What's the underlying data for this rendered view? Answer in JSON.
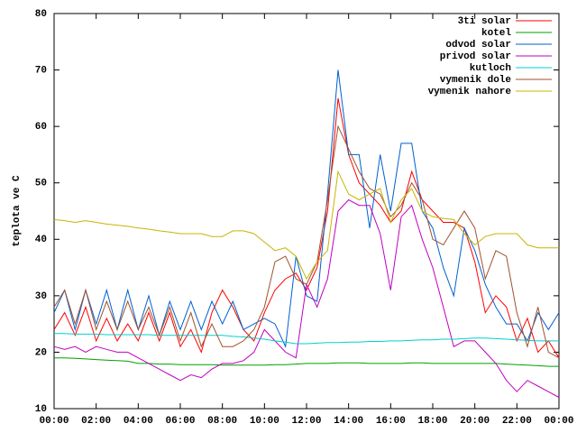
{
  "chart_data": {
    "type": "line",
    "ylabel": "teplota ve C",
    "xlim": [
      0,
      24
    ],
    "xticks": [
      {
        "value": 0,
        "label": "00:00"
      },
      {
        "value": 2,
        "label": "02:00"
      },
      {
        "value": 4,
        "label": "04:00"
      },
      {
        "value": 6,
        "label": "06:00"
      },
      {
        "value": 8,
        "label": "08:00"
      },
      {
        "value": 10,
        "label": "10:00"
      },
      {
        "value": 12,
        "label": "12:00"
      },
      {
        "value": 14,
        "label": "14:00"
      },
      {
        "value": 16,
        "label": "16:00"
      },
      {
        "value": 18,
        "label": "18:00"
      },
      {
        "value": 20,
        "label": "20:00"
      },
      {
        "value": 22,
        "label": "22:00"
      },
      {
        "value": 24,
        "label": "00:00"
      }
    ],
    "ylim": [
      10,
      80
    ],
    "yticks": [
      10,
      20,
      30,
      40,
      50,
      60,
      70,
      80
    ],
    "legend": "top-right",
    "x": [
      0,
      0.5,
      1,
      1.5,
      2,
      2.5,
      3,
      3.5,
      4,
      4.5,
      5,
      5.5,
      6,
      6.5,
      7,
      7.5,
      8,
      8.5,
      9,
      9.5,
      10,
      10.5,
      11,
      11.5,
      12,
      12.5,
      13,
      13.5,
      14,
      14.5,
      15,
      15.5,
      16,
      16.5,
      17,
      17.5,
      18,
      18.5,
      19,
      19.5,
      20,
      20.5,
      21,
      21.5,
      22,
      22.5,
      23,
      23.5,
      24
    ],
    "series": [
      {
        "name": "3ti solar",
        "color": "#ff0000",
        "values": [
          24,
          27,
          23,
          28,
          22,
          26,
          22,
          25,
          22,
          27,
          22,
          27,
          21,
          24,
          20,
          27,
          31,
          28,
          24,
          22,
          27,
          31,
          33,
          34,
          31,
          35,
          45,
          65,
          55,
          50,
          48,
          46,
          43,
          45,
          52,
          47,
          45,
          43,
          43,
          42,
          36,
          27,
          30,
          28,
          22,
          26,
          20,
          22,
          19
        ]
      },
      {
        "name": "kotel",
        "color": "#00a000",
        "values": [
          19,
          19,
          18.9,
          18.8,
          18.7,
          18.6,
          18.5,
          18.4,
          18,
          18,
          17.9,
          17.9,
          17.8,
          17.8,
          17.8,
          17.8,
          17.7,
          17.7,
          17.7,
          17.7,
          17.7,
          17.8,
          17.8,
          17.9,
          18,
          18,
          18,
          18.1,
          18.1,
          18.1,
          18,
          18,
          18,
          18,
          18.1,
          18.1,
          18,
          18,
          18,
          18,
          18,
          18,
          18,
          17.9,
          17.8,
          17.7,
          17.6,
          17.5,
          17.5
        ]
      },
      {
        "name": "odvod solar",
        "color": "#0060d0",
        "values": [
          27,
          31,
          24,
          31,
          25,
          31,
          24,
          31,
          24,
          30,
          23,
          29,
          24,
          29,
          24,
          29,
          25,
          29,
          24,
          25,
          26,
          25,
          21,
          37,
          30,
          29,
          48,
          70,
          55,
          55,
          42,
          55,
          45,
          57,
          57,
          45,
          42,
          35,
          30,
          42,
          38,
          32,
          28,
          25,
          25,
          22,
          27,
          24,
          27
        ]
      },
      {
        "name": "privod solar",
        "color": "#c000c0",
        "values": [
          21,
          20.5,
          21,
          20,
          21,
          20.5,
          20,
          20,
          19,
          18,
          17,
          16,
          15,
          16,
          15.5,
          17,
          18,
          18,
          18.5,
          20,
          24,
          22,
          20,
          19,
          32,
          28,
          33,
          45,
          47,
          46,
          46,
          41,
          31,
          44,
          46,
          40,
          35,
          28,
          21,
          22,
          22,
          20,
          18,
          15,
          13,
          15,
          14,
          13,
          12
        ]
      },
      {
        "name": "kutloch",
        "color": "#00d0d0",
        "values": [
          23.3,
          23.3,
          23.2,
          23.2,
          23.2,
          23.1,
          23.1,
          23.1,
          23.1,
          23.1,
          23,
          23,
          23,
          23,
          23,
          23,
          23,
          22.8,
          22.7,
          22.5,
          22.3,
          22,
          21.8,
          21.5,
          21.5,
          21.6,
          21.7,
          21.7,
          21.8,
          21.8,
          21.9,
          21.9,
          22,
          22,
          22.1,
          22.2,
          22.2,
          22.3,
          22.3,
          22.4,
          22.5,
          22.5,
          22.4,
          22.3,
          22.2,
          22.1,
          22,
          22,
          22
        ]
      },
      {
        "name": "vymenik dole",
        "color": "#a0522d",
        "values": [
          28,
          31,
          25,
          31,
          24,
          29,
          24,
          29,
          24,
          28,
          23,
          28,
          22,
          27,
          21,
          25,
          21,
          21,
          22,
          24,
          28,
          36,
          37,
          33,
          32,
          36,
          47,
          60,
          56,
          52,
          49,
          48,
          44,
          46,
          50,
          47,
          40,
          39,
          42,
          45,
          42,
          33,
          38,
          37,
          27,
          21,
          28,
          20,
          19
        ]
      },
      {
        "name": "vymenik nahore",
        "color": "#c8b400",
        "values": [
          43.5,
          43.3,
          43,
          43.3,
          43,
          42.7,
          42.5,
          42.3,
          42,
          41.8,
          41.5,
          41.3,
          41,
          41,
          41,
          40.5,
          40.5,
          41.5,
          41.5,
          41,
          39.5,
          38,
          38.5,
          37,
          33,
          36,
          38,
          52,
          48,
          47,
          48,
          49,
          43,
          47,
          49,
          45,
          44,
          43.7,
          43.5,
          41,
          39,
          40.5,
          41,
          41,
          41,
          39,
          38.5,
          38.5,
          38.5
        ]
      }
    ]
  }
}
